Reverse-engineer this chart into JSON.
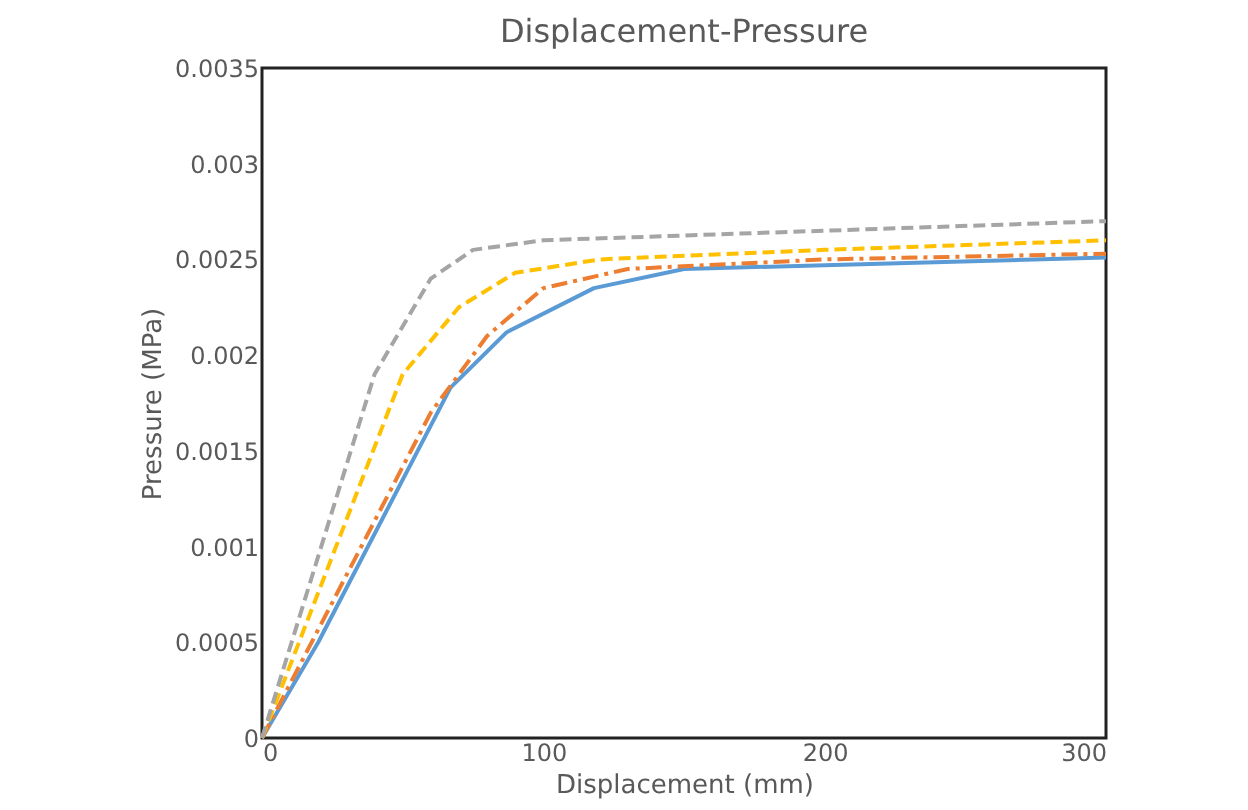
{
  "chart_data": {
    "type": "line",
    "title": "Displacement-Pressure",
    "xlabel": "Displacement (mm)",
    "ylabel": "Pressure (MPa)",
    "xlim": [
      0,
      300
    ],
    "xticks": [
      0,
      100,
      200,
      300
    ],
    "ylim": [
      0,
      0.0035
    ],
    "yticks": [
      0,
      0.0005,
      0.001,
      0.0015,
      0.002,
      0.0025,
      0.003,
      0.0035
    ],
    "grid": false,
    "marker": "none",
    "series": [
      {
        "color": "#5b9bd5",
        "line_style": "solid",
        "x": [
          0,
          20,
          67,
          87,
          118,
          150,
          200,
          300
        ],
        "values": [
          0,
          0.0005,
          0.00183,
          0.00212,
          0.00235,
          0.00245,
          0.00247,
          0.00251
        ]
      },
      {
        "color": "#ed7d31",
        "line_style": "dashdot",
        "x": [
          0,
          60,
          80,
          100,
          130,
          200,
          300
        ],
        "values": [
          0,
          0.0017,
          0.0021,
          0.00235,
          0.00245,
          0.0025,
          0.00253
        ]
      },
      {
        "color": "#ffc000",
        "line_style": "dashed",
        "x": [
          0,
          50,
          70,
          90,
          120,
          200,
          300
        ],
        "values": [
          0,
          0.0019,
          0.00225,
          0.00243,
          0.0025,
          0.00255,
          0.0026
        ]
      },
      {
        "color": "#a5a5a5",
        "line_style": "dashed",
        "x": [
          0,
          40,
          60,
          75,
          100,
          200,
          300
        ],
        "values": [
          0,
          0.0019,
          0.0024,
          0.00255,
          0.0026,
          0.00265,
          0.0027
        ]
      }
    ]
  }
}
